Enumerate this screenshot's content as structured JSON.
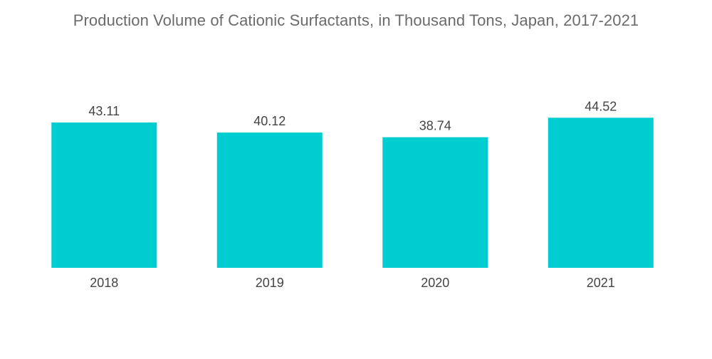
{
  "chart_data": {
    "type": "bar",
    "title": "Production Volume of Cationic Surfactants, in Thousand Tons, Japan, 2017-2021",
    "categories": [
      "2018",
      "2019",
      "2020",
      "2021"
    ],
    "values": [
      43.11,
      40.12,
      38.74,
      44.52
    ],
    "value_labels": [
      "43.11",
      "40.12",
      "38.74",
      "44.52"
    ],
    "xlabel": "",
    "ylabel": "",
    "ylim": [
      0,
      45
    ],
    "grid": false,
    "legend": "none",
    "colors": {
      "bar": "#00cdd0"
    }
  }
}
